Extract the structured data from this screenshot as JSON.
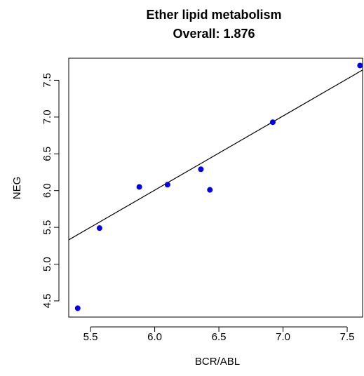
{
  "chart_data": {
    "type": "scatter",
    "title": "Ether lipid metabolism",
    "subtitle": "Overall: 1.876",
    "xlabel": "BCR/ABL",
    "ylabel": "NEG",
    "xlim": [
      5.33,
      7.62
    ],
    "ylim": [
      4.28,
      7.8
    ],
    "x_ticks": [
      "5.5",
      "6.0",
      "6.5",
      "7.0",
      "7.5"
    ],
    "x_tick_values": [
      5.5,
      6.0,
      6.5,
      7.0,
      7.5
    ],
    "y_ticks": [
      "4.5",
      "5.0",
      "5.5",
      "6.0",
      "6.5",
      "7.0",
      "7.5"
    ],
    "y_tick_values": [
      4.5,
      5.0,
      5.5,
      6.0,
      6.5,
      7.0,
      7.5
    ],
    "grid": false,
    "point_color": "#0000ee",
    "line_color": "#000000",
    "points": [
      {
        "x": 5.4,
        "y": 4.4
      },
      {
        "x": 5.57,
        "y": 5.49
      },
      {
        "x": 5.88,
        "y": 6.05
      },
      {
        "x": 6.1,
        "y": 6.08
      },
      {
        "x": 6.36,
        "y": 6.29
      },
      {
        "x": 6.43,
        "y": 6.01
      },
      {
        "x": 6.92,
        "y": 6.93
      },
      {
        "x": 7.6,
        "y": 7.7
      }
    ],
    "fit_line": {
      "x": [
        5.33,
        7.62
      ],
      "y": [
        5.33,
        7.64
      ]
    }
  }
}
